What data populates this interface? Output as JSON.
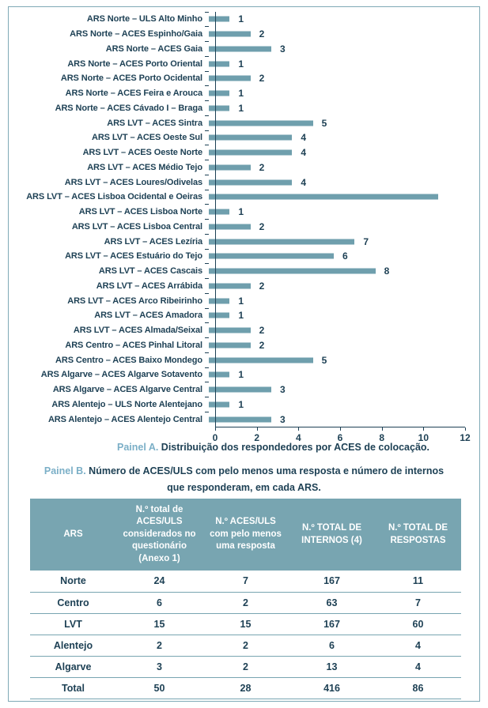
{
  "colors": {
    "bar": "#6F9FAD",
    "table_header_bg": "#78A5B1",
    "dark_text": "#1E4155",
    "caption_accent": "#7BAFC7",
    "frame_border": "#7FA9B6"
  },
  "panel_a": {
    "caption_label": "Painel A.",
    "caption_text": " Distribuição dos respondedores por ACES de colocação."
  },
  "panel_b": {
    "caption_label": "Painel B.",
    "caption_text": " Número de ACES/ULS com pelo menos uma resposta e número de internos que responderam, em cada ARS."
  },
  "chart_data": [
    {
      "type": "bar",
      "orientation": "horizontal",
      "title": "",
      "xlabel": "",
      "ylabel": "",
      "xlim": [
        0,
        12
      ],
      "xticks": [
        0,
        2,
        4,
        6,
        8,
        10,
        12
      ],
      "grid": false,
      "legend": false,
      "categories": [
        "ARS Norte – ULS Alto Minho",
        "ARS Norte – ACES Espinho/Gaia",
        "ARS Norte – ACES Gaia",
        "ARS Norte – ACES Porto Oriental",
        "ARS Norte – ACES Porto Ocidental",
        "ARS Norte – ACES Feira e Arouca",
        "ARS Norte – ACES Cávado I – Braga",
        "ARS LVT – ACES Sintra",
        "ARS LVT – ACES Oeste Sul",
        "ARS LVT – ACES Oeste Norte",
        "ARS LVT – ACES Médio Tejo",
        "ARS LVT – ACES Loures/Odivelas",
        "ARS LVT – ACES Lisboa Ocidental e Oeiras",
        "ARS LVT – ACES Lisboa Norte",
        "ARS LVT – ACES Lisboa Central",
        "ARS LVT – ACES Lezíria",
        "ARS LVT – ACES Estuário do Tejo",
        "ARS LVT – ACES Cascais",
        "ARS LVT – ACES Arrábida",
        "ARS LVT – ACES Arco Ribeirinho",
        "ARS LVT – ACES Amadora",
        "ARS LVT – ACES Almada/Seixal",
        "ARS Centro – ACES Pinhal Litoral",
        "ARS Centro – ACES Baixo Mondego",
        "ARS Algarve – ACES Algarve Sotavento",
        "ARS Algarve – ACES Algarve Central",
        "ARS Alentejo – ULS Norte Alentejano",
        "ARS Alentejo – ACES Alentejo Central"
      ],
      "values": [
        1,
        2,
        3,
        1,
        2,
        1,
        1,
        5,
        4,
        4,
        2,
        4,
        11,
        1,
        2,
        7,
        6,
        8,
        2,
        1,
        1,
        2,
        2,
        5,
        1,
        3,
        1,
        3
      ],
      "value_labels": [
        "1",
        "2",
        "3",
        "1",
        "2",
        "1",
        "1",
        "5",
        "4",
        "4",
        "2",
        "4",
        "",
        "1",
        "2",
        "7",
        "6",
        "8",
        "2",
        "1",
        "1",
        "2",
        "2",
        "5",
        "1",
        "3",
        "1",
        "3"
      ]
    },
    {
      "type": "table",
      "columns": [
        "ARS",
        "N.º total de ACES/ULS considerados no questionário (Anexo 1)",
        "N.º ACES/ULS com pelo menos uma resposta",
        "N.º TOTAL DE INTERNOS (4)",
        "N.º TOTAL DE RESPOSTAS"
      ],
      "rows": [
        [
          "Norte",
          "24",
          "7",
          "167",
          "11"
        ],
        [
          "Centro",
          "6",
          "2",
          "63",
          "7"
        ],
        [
          "LVT",
          "15",
          "15",
          "167",
          "60"
        ],
        [
          "Alentejo",
          "2",
          "2",
          "6",
          "4"
        ],
        [
          "Algarve",
          "3",
          "2",
          "13",
          "4"
        ],
        [
          "Total",
          "50",
          "28",
          "416",
          "86"
        ]
      ]
    }
  ]
}
